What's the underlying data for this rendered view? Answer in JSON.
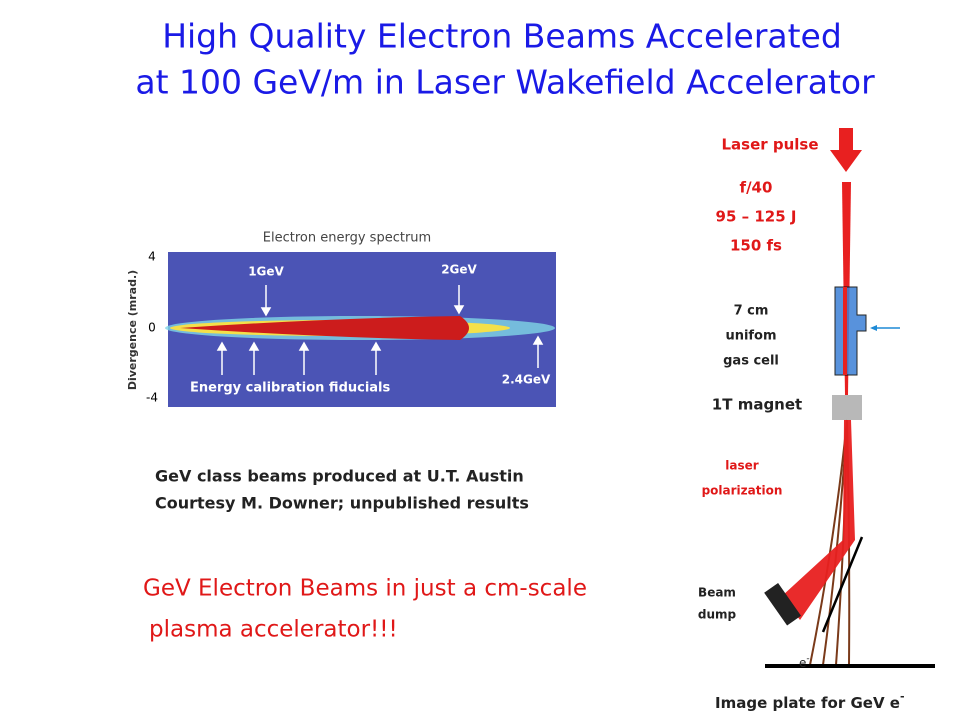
{
  "title": {
    "line1": "High Quality Electron Beams Accelerated",
    "line2": "at 100 GeV/m in Laser Wakefield Accelerator"
  },
  "figure": {
    "title": "Electron energy spectrum",
    "y_label": "Divergence (mrad.)",
    "y_ticks": [
      "4",
      "0",
      "-4"
    ],
    "labels": [
      "1GeV",
      "2GeV",
      "2.4GeV"
    ],
    "fiducials": "Energy calibration fiducials"
  },
  "caption": [
    "GeV class beams produced at U.T. Austin",
    "Courtesy M. Downer; unpublished results"
  ],
  "highlight": [
    "GeV Electron Beams in just a cm-scale",
    "plasma accelerator!!!"
  ],
  "diagram": {
    "laser_pulse": "Laser pulse",
    "laser_params": [
      "f/40",
      "95 – 125 J",
      "150 fs"
    ],
    "gas_cell": [
      "7 cm",
      "unifom",
      "gas cell"
    ],
    "magnet": "1T magnet",
    "polarization": [
      "laser",
      "polarization"
    ],
    "beam_dump": [
      "Beam",
      "dump"
    ],
    "electron": {
      "text": "e",
      "sup": "-"
    },
    "image_plate": {
      "text": "Image plate for GeV e",
      "sup": "-"
    }
  }
}
